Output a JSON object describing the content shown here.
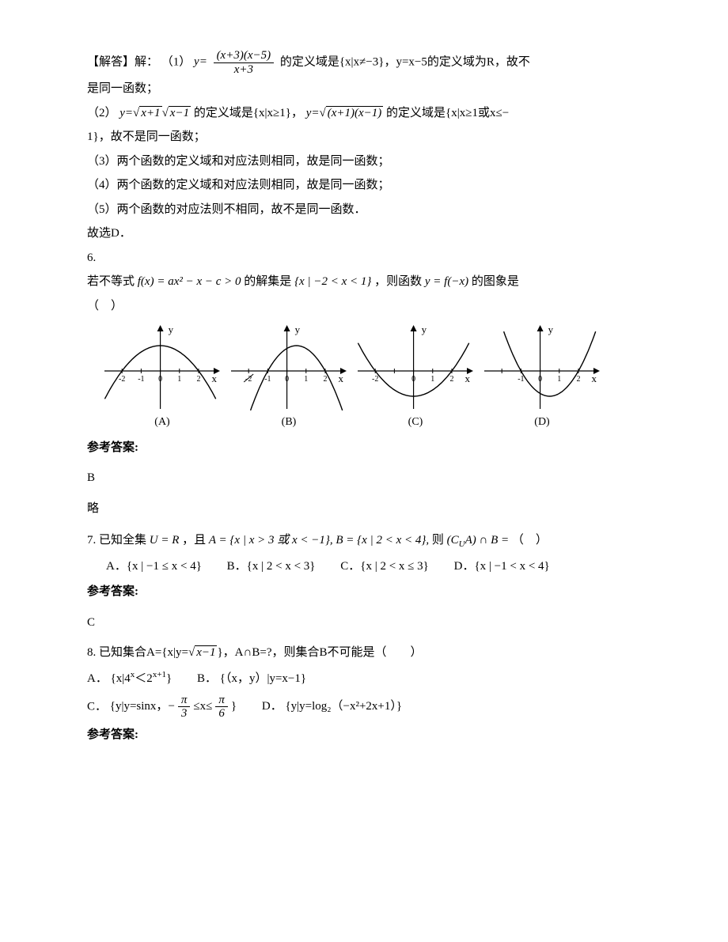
{
  "solution5": {
    "label": "【解答】解：",
    "item1_pre": "（1）",
    "frac1_top": "(x+3)(x−5)",
    "frac1_bot": "x+3",
    "item1_post": "的定义域是{x|x≠−3}，y=x−5的定义域为R，故不",
    "item1_line2": "是同一函数；",
    "item2_pre": "（2）",
    "eq2a_pre": "y=",
    "eq2a_r1": "x+1",
    "eq2a_r2": "x−1",
    "item2_mid": "的定义域是{x|x≥1}，",
    "eq2b_pre": "y=",
    "eq2b_r": "(x+1)(x−1)",
    "item2_post": "的定义域是{x|x≥1或x≤−",
    "item2_line2": "1}，故不是同一函数；",
    "item3": "（3）两个函数的定义域和对应法则相同，故是同一函数；",
    "item4": "（4）两个函数的定义域和对应法则相同，故是同一函数；",
    "item5": "（5）两个函数的对应法则不相同，故不是同一函数．",
    "conclusion": "故选D．"
  },
  "q6": {
    "num": "6.",
    "stem_a": "若不等式",
    "formula": "f(x) = ax² − x − c > 0",
    "stem_b": "的解集是",
    "set": "{x | −2 < x < 1}",
    "stem_c": "，则函数",
    "formula2": "y = f(−x)",
    "stem_d": "的图象是",
    "paren": "（　）",
    "ans_label": "参考答案:",
    "ans": "B",
    "brief": "略",
    "graphs": {
      "A": {
        "label": "(A)",
        "shape": "down",
        "roots": [
          -2,
          2
        ],
        "ticks": [
          -2,
          -1,
          0,
          1,
          2
        ],
        "tick_labels": [
          "-2",
          "-1",
          "0",
          "1",
          "2"
        ],
        "color": "#000000"
      },
      "B": {
        "label": "(B)",
        "shape": "down",
        "roots": [
          -1,
          2
        ],
        "ticks": [
          -2,
          -1,
          0,
          1,
          2
        ],
        "tick_labels": [
          "-2",
          "-1",
          "0",
          "1",
          "2"
        ],
        "tick_strike": -2,
        "color": "#000000"
      },
      "C": {
        "label": "(C)",
        "shape": "up",
        "roots": [
          -2,
          2
        ],
        "ticks": [
          -2,
          -1,
          0,
          1,
          2
        ],
        "tick_labels": [
          "-2",
          "",
          "0",
          "1",
          "2"
        ],
        "color": "#000000"
      },
      "D": {
        "label": "(D)",
        "shape": "up",
        "roots": [
          -1,
          2
        ],
        "ticks": [
          -2,
          -1,
          0,
          1,
          2
        ],
        "tick_labels": [
          "",
          "-1",
          "0",
          "1",
          "2"
        ],
        "color": "#000000"
      },
      "axis_color": "#000000",
      "width": 150,
      "height": 110,
      "x_range": [
        -3,
        3.2
      ],
      "y_range": [
        -2.5,
        3
      ],
      "xlabel": "x",
      "ylabel": "y",
      "label_fontsize": 13,
      "tick_fontsize": 10
    }
  },
  "q7": {
    "num": "7.",
    "stem_a": "已知全集",
    "U": "U = R",
    "stem_b": "，且",
    "A": "A = {x | x > 3 或 x < −1}, B = {x | 2 < x < 4},",
    "then": "则",
    "expr": "(C_U A) ∩ B =",
    "paren": "（　）",
    "optA_label": "A．",
    "optA": "{x | −1 ≤ x < 4}",
    "optB_label": "B．",
    "optB": "{x | 2 < x < 3}",
    "optC_label": "C．",
    "optC": "{x | 2 < x ≤ 3}",
    "optD_label": "D．",
    "optD": "{x | −1 < x < 4}",
    "ans_label": "参考答案:",
    "ans": "C"
  },
  "q8": {
    "num": "8.",
    "stem_a": "已知集合A={x|y=",
    "sqrt": "x−1",
    "stem_b": "}，A∩B=?，则集合B不可能是（　　）",
    "optA_label": "A．",
    "optA_a": "{x|4",
    "optA_sup1": "x",
    "optA_b": "＜2",
    "optA_sup2": "x+1",
    "optA_c": "}",
    "optB_label": "B．",
    "optB": "{（x，y）|y=x−1}",
    "optC_label": "C．",
    "optC_a": "{y|y=sinx，",
    "optC_frac1_top": "π",
    "optC_frac1_bot": "3",
    "optC_mid": "≤x≤",
    "optC_frac2_top": "π",
    "optC_frac2_bot": "6",
    "optC_b": "}",
    "optD_label": "D．",
    "optD": "{y|y=log₂（−x²+2x+1）}",
    "ans_label": "参考答案:"
  }
}
